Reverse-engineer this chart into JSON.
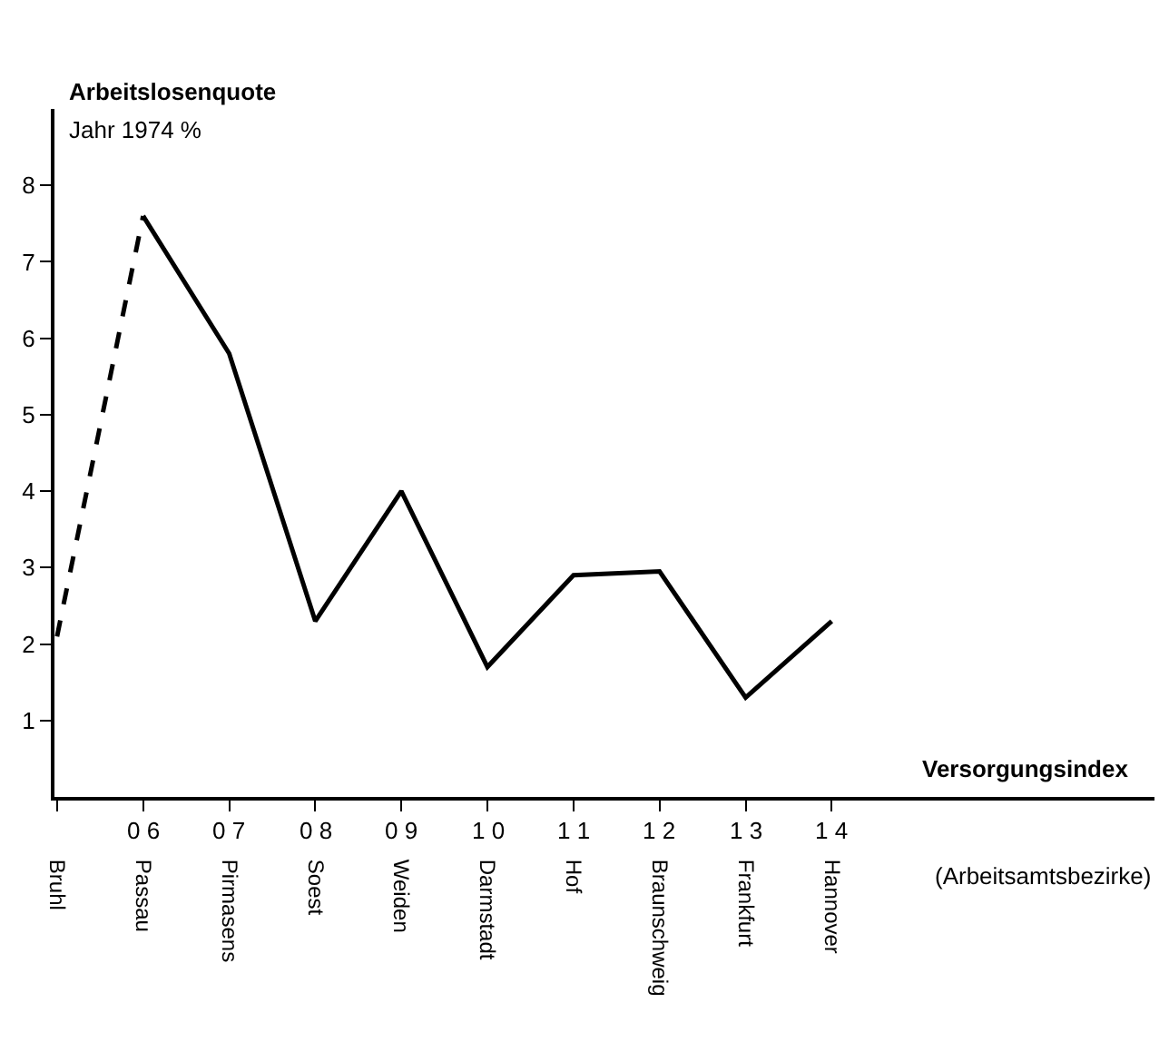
{
  "chart_data": {
    "type": "line",
    "ylabel": "Arbeitslosenquote",
    "subtitle": "Jahr 1974 %",
    "xlabel": "Versorgungsindex",
    "categories": [
      "Bruhl",
      "Passau",
      "Pirmasens",
      "Soest",
      "Weiden",
      "Darmstadt",
      "Hof",
      "Braunschweig",
      "Frankfurt",
      "Hannover"
    ],
    "series": [
      {
        "color": "#000000",
        "line_style": "dashed",
        "values": [
          2.1,
          7.6,
          null,
          null,
          null,
          null,
          null,
          null,
          null,
          null
        ]
      },
      {
        "color": "#000000",
        "line_style": "solid",
        "values": [
          null,
          7.6,
          5.8,
          2.3,
          4.0,
          1.7,
          2.9,
          2.95,
          1.3,
          2.3
        ]
      }
    ],
    "ylim": [
      0,
      9
    ],
    "yticks": [
      1,
      2,
      3,
      4,
      5,
      6,
      7,
      8
    ],
    "annotations": [
      {
        "text": "0 6",
        "x": "Passau"
      },
      {
        "text": "0 7",
        "x": "Pirmasens"
      },
      {
        "text": "0 8",
        "x": "Soest"
      },
      {
        "text": "0 9",
        "x": "Weiden"
      },
      {
        "text": "1 0",
        "x": "Darmstadt"
      },
      {
        "text": "1 1",
        "x": "Hof"
      },
      {
        "text": "1 2",
        "x": "Braunschweig"
      },
      {
        "text": "1 3",
        "x": "Frankfurt"
      },
      {
        "text": "1 4",
        "x": "Hannover"
      },
      "(Arbeitsamtsbezirke)"
    ],
    "marker": "none"
  }
}
